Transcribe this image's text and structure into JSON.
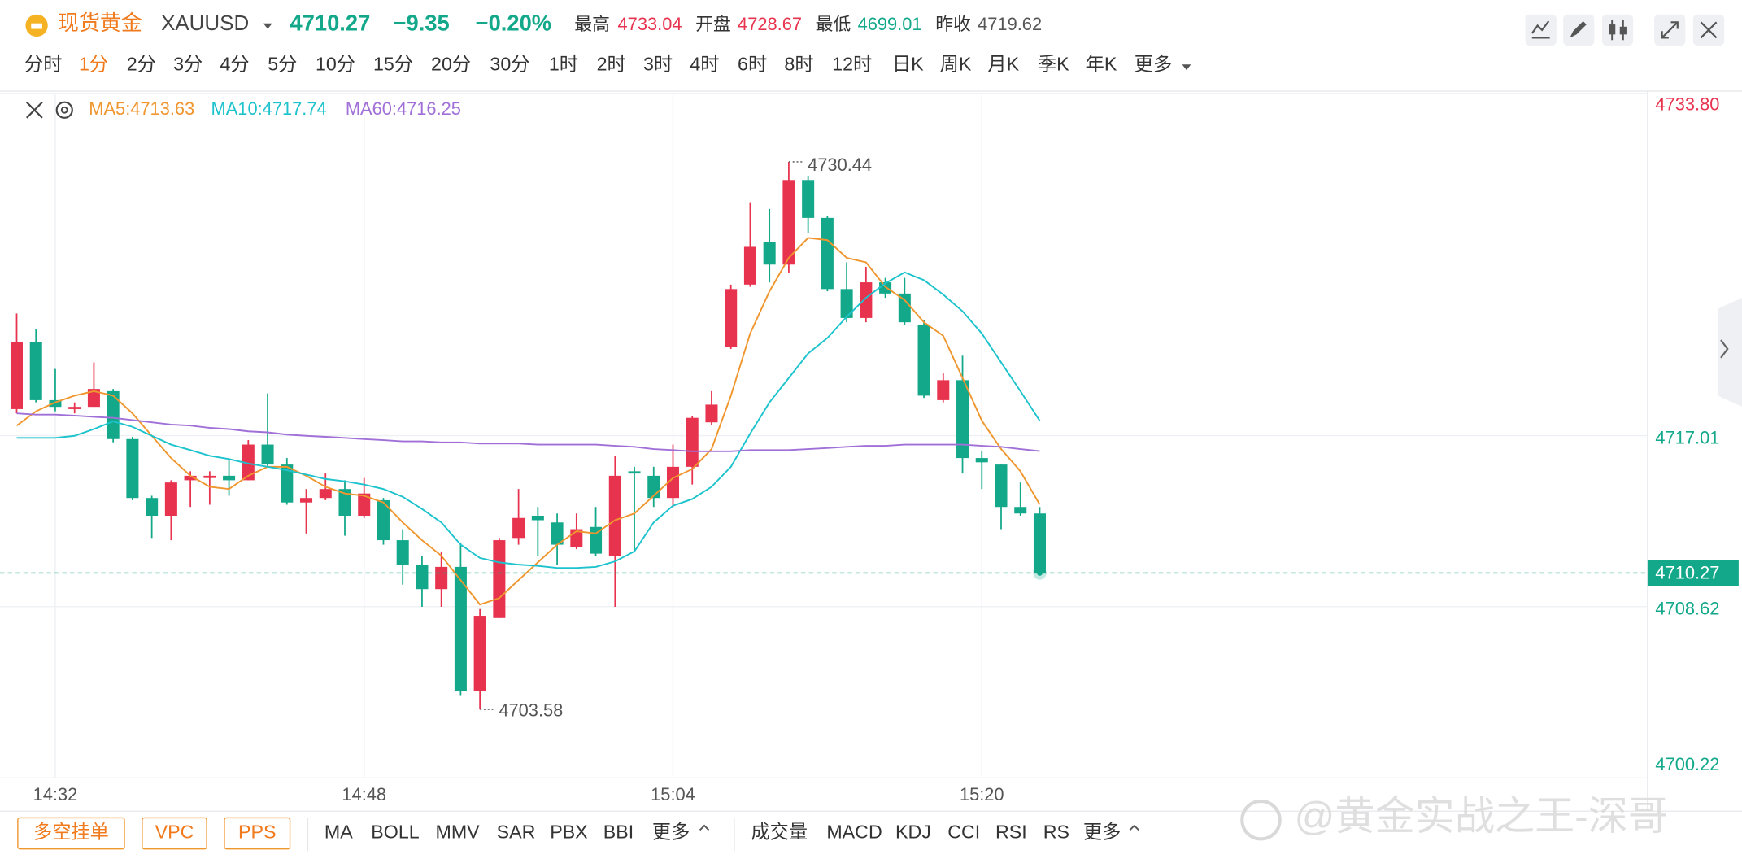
{
  "header": {
    "name": "现货黄金",
    "symbol": "XAUUSD",
    "price": "4710.27",
    "change": "−9.35",
    "change_pct": "−0.20%",
    "stats": [
      {
        "label": "最高",
        "value": "4733.04"
      },
      {
        "label": "开盘",
        "value": "4728.67"
      },
      {
        "label": "最低",
        "value": "4699.01"
      },
      {
        "label": "昨收",
        "value": "4719.62"
      }
    ]
  },
  "periods": [
    "分时",
    "1分",
    "2分",
    "3分",
    "4分",
    "5分",
    "10分",
    "15分",
    "20分",
    "30分",
    "1时",
    "2时",
    "3时",
    "4时",
    "6时",
    "8时",
    "12时",
    "日K",
    "周K",
    "月K",
    "季K",
    "年K",
    "更多"
  ],
  "chart_data": {
    "type": "candlestick",
    "categories": [
      null,
      null,
      "14:32",
      null,
      null,
      null,
      null,
      null,
      null,
      null,
      null,
      null,
      null,
      null,
      null,
      null,
      null,
      null,
      "14:48",
      null,
      null,
      null,
      null,
      null,
      null,
      null,
      null,
      null,
      null,
      null,
      null,
      null,
      null,
      null,
      "15:04",
      null,
      null,
      null,
      null,
      null,
      null,
      null,
      null,
      null,
      null,
      null,
      null,
      null,
      null,
      null,
      "15:20",
      null,
      null,
      null
    ],
    "open": [
      4718.31,
      4721.59,
      4718.75,
      4718.31,
      4718.42,
      4719.19,
      4716.84,
      4713.95,
      4713.08,
      4714.82,
      4714.93,
      4715.04,
      4714.82,
      4716.57,
      4715.59,
      4713.73,
      4713.95,
      4714.39,
      4713.08,
      4713.84,
      4711.88,
      4710.68,
      4709.48,
      4710.57,
      4704.46,
      4708.06,
      4711.99,
      4713.08,
      4712.75,
      4711.55,
      4712.53,
      4711.12,
      4715.26,
      4715.04,
      4713.95,
      4715.48,
      4717.66,
      4721.37,
      4724.42,
      4726.49,
      4725.4,
      4729.55,
      4727.69,
      4724.2,
      4722.78,
      4724.53,
      4723.98,
      4722.46,
      4718.75,
      4719.73,
      4715.91,
      4715.59,
      4713.51,
      4713.19
    ],
    "high": [
      4723.0,
      4722.24,
      4720.28,
      4718.64,
      4720.6,
      4719.3,
      4716.95,
      4714.06,
      4714.82,
      4715.26,
      4715.26,
      4715.8,
      4716.79,
      4719.08,
      4715.91,
      4714.39,
      4715.15,
      4714.82,
      4714.93,
      4713.95,
      4712.42,
      4711.12,
      4711.33,
      4711.77,
      4708.5,
      4711.99,
      4714.39,
      4713.51,
      4713.19,
      4713.19,
      4713.51,
      4716.02,
      4715.48,
      4715.48,
      4716.57,
      4717.99,
      4719.19,
      4724.42,
      4728.46,
      4728.13,
      4730.44,
      4729.76,
      4727.8,
      4725.51,
      4725.29,
      4724.75,
      4724.75,
      4722.68,
      4720.06,
      4720.93,
      4716.24,
      4715.59,
      4714.71,
      4713.51
    ],
    "low": [
      4718.1,
      4718.64,
      4718.2,
      4718.1,
      4718.42,
      4716.68,
      4713.84,
      4711.99,
      4711.88,
      4713.51,
      4713.62,
      4714.06,
      4714.82,
      4715.48,
      4713.62,
      4712.21,
      4713.84,
      4712.1,
      4712.97,
      4711.66,
      4709.7,
      4708.61,
      4708.61,
      4704.24,
      4703.58,
      4708.06,
      4711.66,
      4711.12,
      4710.68,
      4711.44,
      4711.12,
      4708.61,
      4711.33,
      4713.51,
      4713.51,
      4714.61,
      4717.55,
      4721.26,
      4724.31,
      4724.53,
      4724.97,
      4726.93,
      4724.09,
      4722.57,
      4722.57,
      4723.77,
      4722.46,
      4718.86,
      4718.64,
      4715.15,
      4714.39,
      4712.42,
      4713.08,
      4710.27
    ],
    "close": [
      4721.59,
      4718.75,
      4718.42,
      4718.42,
      4719.3,
      4716.84,
      4713.95,
      4713.08,
      4714.71,
      4715.04,
      4715.04,
      4714.82,
      4716.57,
      4715.59,
      4713.73,
      4713.95,
      4714.39,
      4713.08,
      4714.17,
      4711.88,
      4710.68,
      4709.48,
      4710.57,
      4704.46,
      4708.17,
      4711.88,
      4712.97,
      4712.86,
      4711.66,
      4712.42,
      4711.22,
      4715.04,
      4715.15,
      4713.95,
      4715.48,
      4717.88,
      4718.53,
      4724.2,
      4726.27,
      4725.4,
      4729.55,
      4727.69,
      4724.2,
      4722.78,
      4724.53,
      4723.98,
      4722.57,
      4718.97,
      4719.73,
      4715.91,
      4715.7,
      4713.51,
      4713.19,
      4710.27
    ],
    "up_color": "#e8334f",
    "down_color": "#13a88a",
    "ma": [
      {
        "label": "MA5:4713.63",
        "color": "#f0962e",
        "values": [
          4717.5,
          4718.2,
          4718.64,
          4718.97,
          4719.19,
          4718.97,
          4718.1,
          4717.0,
          4715.91,
          4715.04,
          4714.5,
          4714.39,
          4715.04,
          4715.48,
          4715.48,
          4715.04,
          4714.5,
          4714.17,
          4714.06,
          4713.73,
          4712.75,
          4711.88,
          4711.12,
          4709.92,
          4708.72,
          4709.04,
          4709.92,
          4710.79,
          4711.66,
          4712.32,
          4712.21,
          4712.86,
          4713.19,
          4714.06,
          4714.93,
          4715.37,
          4716.35,
          4718.97,
          4722.02,
          4724.09,
          4725.73,
          4726.71,
          4726.6,
          4725.73,
          4725.51,
          4724.31,
          4723.66,
          4722.57,
          4721.91,
          4719.84,
          4717.74,
          4716.35,
          4715.26,
          4713.63
        ]
      },
      {
        "label": "MA10:4717.74",
        "color": "#1cc3cd",
        "values": [
          4716.9,
          4716.9,
          4716.9,
          4717.0,
          4717.33,
          4717.71,
          4717.44,
          4717.0,
          4716.57,
          4716.3,
          4716.02,
          4715.86,
          4715.64,
          4715.48,
          4715.31,
          4715.1,
          4714.88,
          4714.77,
          4714.61,
          4714.39,
          4714.01,
          4713.41,
          4712.75,
          4711.66,
          4711.01,
          4710.79,
          4710.68,
          4710.62,
          4710.52,
          4710.52,
          4710.57,
          4710.84,
          4711.33,
          4712.75,
          4713.57,
          4713.9,
          4714.5,
          4715.48,
          4717.11,
          4718.64,
          4719.84,
          4721.04,
          4721.8,
          4722.84,
          4723.77,
          4724.48,
          4725.02,
          4724.64,
          4723.93,
          4723.11,
          4722.02,
          4720.6,
          4719.19,
          4717.74
        ]
      },
      {
        "label": "MA60:4716.25",
        "color": "#a070d8",
        "values": [
          4718.1,
          4718.04,
          4718.04,
          4717.99,
          4717.93,
          4717.88,
          4717.77,
          4717.66,
          4717.55,
          4717.5,
          4717.39,
          4717.33,
          4717.22,
          4717.17,
          4717.06,
          4717.0,
          4716.95,
          4716.9,
          4716.84,
          4716.79,
          4716.73,
          4716.73,
          4716.68,
          4716.68,
          4716.62,
          4716.62,
          4716.62,
          4716.57,
          4716.57,
          4716.57,
          4716.57,
          4716.51,
          4716.46,
          4716.35,
          4716.3,
          4716.24,
          4716.24,
          4716.24,
          4716.3,
          4716.3,
          4716.3,
          4716.35,
          4716.4,
          4716.46,
          4716.51,
          4716.51,
          4716.57,
          4716.57,
          4716.57,
          4716.57,
          4716.51,
          4716.46,
          4716.35,
          4716.25
        ]
      }
    ],
    "ylim": [
      4700.22,
      4733.8
    ],
    "yticks": [
      4700.22,
      4708.62,
      4717.01,
      {
        "value": 4733.8,
        "label": "4733.80"
      }
    ],
    "last_price": 4710.27
  },
  "order_buttons": [
    "多空挂单",
    "VPC",
    "PPS"
  ],
  "main_indicators": [
    "MA",
    "BOLL",
    "MMV",
    "SAR",
    "PBX",
    "BBI",
    "更多"
  ],
  "sub_indicators": [
    "成交量",
    "MACD",
    "KDJ",
    "CCI",
    "RSI",
    "RS",
    "更多"
  ],
  "watermark": "@黄金实战之王-深哥"
}
